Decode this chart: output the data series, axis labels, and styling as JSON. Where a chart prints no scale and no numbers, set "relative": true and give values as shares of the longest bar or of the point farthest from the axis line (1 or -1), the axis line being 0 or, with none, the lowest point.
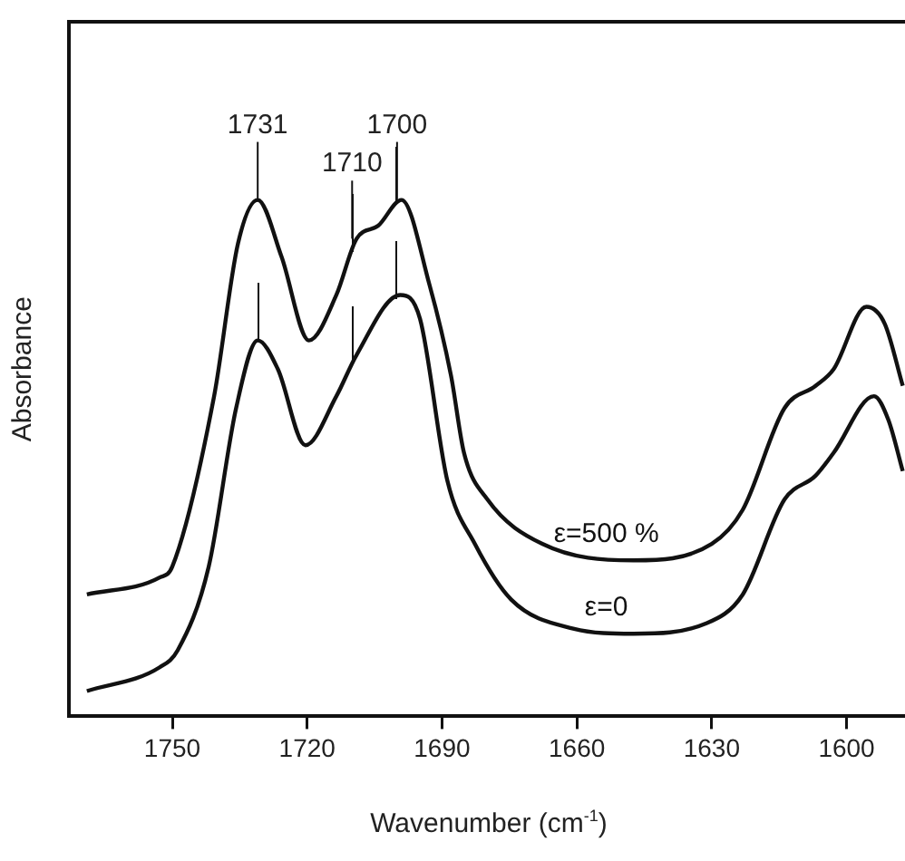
{
  "chart_data": {
    "type": "line",
    "relative": true,
    "xlabel": "Wavenumber (cm$^{-1}$)",
    "ylabel": "Absorbance",
    "xlim": [
      1773,
      1587
    ],
    "xticks": [
      1750,
      1720,
      1690,
      1660,
      1630,
      1600
    ],
    "grid": false,
    "legend": false,
    "marker": "none",
    "line_style": "solid",
    "series": [
      {
        "name": "ε=500 %",
        "color": "#111111",
        "x": [
          1769,
          1752.8,
          1750,
          1740.7,
          1735.4,
          1731,
          1725.7,
          1719.6,
          1713.5,
          1709,
          1704.2,
          1699,
          1692.8,
          1688,
          1685.1,
          1679.9,
          1667.7,
          1647.4,
          1630,
          1623.1,
          1613.8,
          1606.9,
          1602.9,
          1595.6,
          1591.5,
          1587.5
        ],
        "values": [
          0.236,
          0.269,
          0.29,
          0.62,
          0.915,
          1.0,
          0.89,
          0.728,
          0.816,
          0.925,
          0.95,
          1.0,
          0.836,
          0.66,
          0.51,
          0.42,
          0.334,
          0.302,
          0.334,
          0.4,
          0.597,
          0.64,
          0.672,
          0.793,
          0.76,
          0.64
        ]
      },
      {
        "name": "ε=0",
        "color": "#111111",
        "x": [
          1769,
          1752.8,
          1748.8,
          1741.9,
          1735.8,
          1731,
          1726.5,
          1720.4,
          1713.5,
          1709,
          1699.3,
          1694.9,
          1688.8,
          1682.7,
          1674.6,
          1660.8,
          1647.4,
          1631.2,
          1623.1,
          1613.8,
          1606.9,
          1602.9,
          1593.9,
          1590.7,
          1587.5
        ],
        "values": [
          0.049,
          0.095,
          0.128,
          0.29,
          0.597,
          0.728,
          0.672,
          0.525,
          0.62,
          0.7,
          0.816,
          0.77,
          0.456,
          0.334,
          0.226,
          0.17,
          0.16,
          0.18,
          0.236,
          0.42,
          0.466,
          0.51,
          0.62,
          0.574,
          0.475
        ]
      }
    ],
    "annotations": [
      {
        "text": "1731",
        "x": 1731,
        "y": 1.0
      },
      {
        "text": "1710",
        "x": 1710,
        "y": 0.925
      },
      {
        "text": "1700",
        "x": 1700,
        "y": 1.0
      }
    ]
  }
}
